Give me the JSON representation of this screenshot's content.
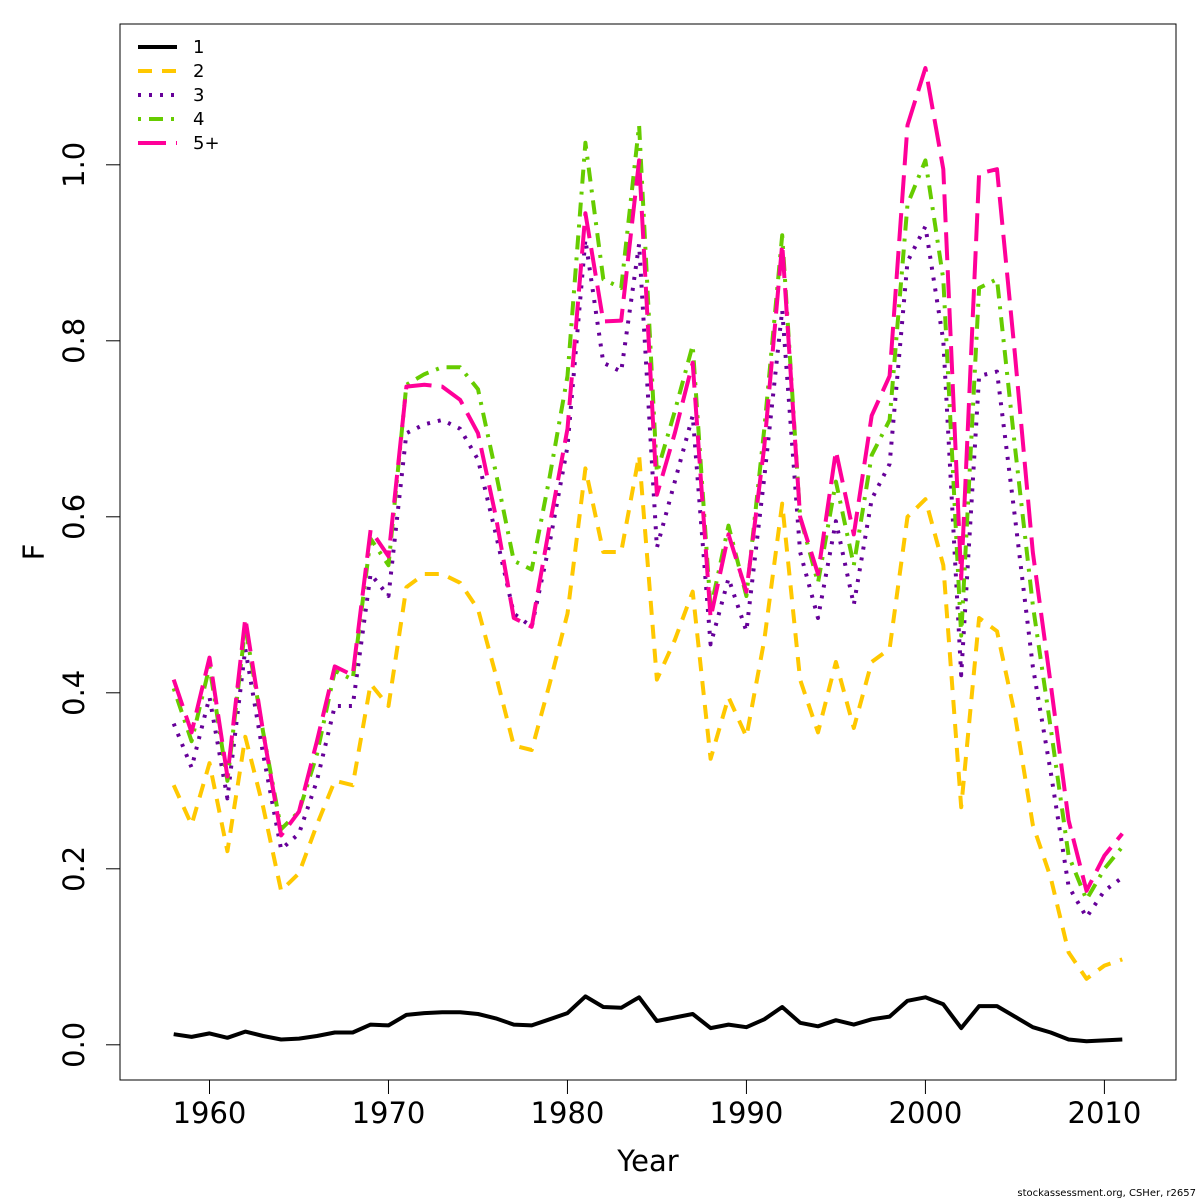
{
  "chart_data": {
    "type": "line",
    "title": "",
    "xlabel": "Year",
    "ylabel": "F",
    "xlim": [
      1955,
      2014
    ],
    "ylim": [
      -0.04,
      1.16
    ],
    "xticks": [
      "1960",
      "1970",
      "1980",
      "1990",
      "2000",
      "2010"
    ],
    "yticks": [
      "0.0",
      "0.2",
      "0.4",
      "0.6",
      "0.8",
      "1.0"
    ],
    "grid": false,
    "legend_position": "top-left",
    "x": [
      1958,
      1959,
      1960,
      1961,
      1962,
      1963,
      1964,
      1965,
      1966,
      1967,
      1968,
      1969,
      1970,
      1971,
      1972,
      1973,
      1974,
      1975,
      1976,
      1977,
      1978,
      1979,
      1980,
      1981,
      1982,
      1983,
      1984,
      1985,
      1986,
      1987,
      1988,
      1989,
      1990,
      1991,
      1992,
      1993,
      1994,
      1995,
      1996,
      1997,
      1998,
      1999,
      2000,
      2001,
      2002,
      2003,
      2004,
      2005,
      2006,
      2007,
      2008,
      2009,
      2010,
      2011
    ],
    "series": [
      {
        "name": "1",
        "color": "#000000",
        "dash": "solid",
        "values": [
          0.012,
          0.009,
          0.013,
          0.008,
          0.015,
          0.01,
          0.006,
          0.007,
          0.01,
          0.014,
          0.014,
          0.023,
          0.022,
          0.034,
          0.036,
          0.037,
          0.037,
          0.035,
          0.03,
          0.023,
          0.022,
          0.029,
          0.036,
          0.055,
          0.043,
          0.042,
          0.054,
          0.027,
          0.031,
          0.035,
          0.019,
          0.023,
          0.02,
          0.029,
          0.043,
          0.025,
          0.021,
          0.028,
          0.023,
          0.029,
          0.032,
          0.05,
          0.054,
          0.046,
          0.019,
          0.044,
          0.044,
          0.032,
          0.02,
          0.014,
          0.006,
          0.004,
          0.005,
          0.006
        ]
      },
      {
        "name": "2",
        "color": "#ffc800",
        "dash": "dashed",
        "values": [
          0.295,
          0.25,
          0.32,
          0.22,
          0.35,
          0.27,
          0.175,
          0.195,
          0.25,
          0.3,
          0.295,
          0.41,
          0.385,
          0.52,
          0.535,
          0.535,
          0.525,
          0.495,
          0.42,
          0.34,
          0.335,
          0.41,
          0.49,
          0.655,
          0.56,
          0.56,
          0.67,
          0.415,
          0.46,
          0.515,
          0.325,
          0.395,
          0.35,
          0.46,
          0.615,
          0.415,
          0.355,
          0.435,
          0.36,
          0.435,
          0.45,
          0.6,
          0.62,
          0.545,
          0.27,
          0.485,
          0.47,
          0.375,
          0.25,
          0.19,
          0.105,
          0.075,
          0.09,
          0.097
        ]
      },
      {
        "name": "3",
        "color": "#660099",
        "dash": "dotted",
        "values": [
          0.365,
          0.315,
          0.395,
          0.28,
          0.45,
          0.33,
          0.222,
          0.24,
          0.3,
          0.385,
          0.385,
          0.535,
          0.51,
          0.695,
          0.705,
          0.71,
          0.7,
          0.665,
          0.58,
          0.49,
          0.475,
          0.57,
          0.68,
          0.915,
          0.775,
          0.765,
          0.91,
          0.565,
          0.64,
          0.715,
          0.455,
          0.53,
          0.47,
          0.645,
          0.835,
          0.56,
          0.485,
          0.595,
          0.5,
          0.62,
          0.66,
          0.89,
          0.93,
          0.8,
          0.42,
          0.76,
          0.765,
          0.6,
          0.43,
          0.31,
          0.18,
          0.145,
          0.175,
          0.19
        ]
      },
      {
        "name": "4",
        "color": "#66cc00",
        "dash": "dotdash",
        "values": [
          0.405,
          0.345,
          0.43,
          0.3,
          0.475,
          0.355,
          0.245,
          0.265,
          0.33,
          0.425,
          0.415,
          0.575,
          0.545,
          0.75,
          0.762,
          0.77,
          0.77,
          0.745,
          0.65,
          0.55,
          0.54,
          0.645,
          0.76,
          1.025,
          0.87,
          0.86,
          1.045,
          0.65,
          0.72,
          0.795,
          0.495,
          0.59,
          0.51,
          0.7,
          0.92,
          0.6,
          0.525,
          0.64,
          0.545,
          0.67,
          0.71,
          0.955,
          1.005,
          0.87,
          0.465,
          0.86,
          0.87,
          0.68,
          0.5,
          0.36,
          0.215,
          0.165,
          0.2,
          0.225
        ]
      },
      {
        "name": "5+",
        "color": "#ff0099",
        "dash": "longdash",
        "values": [
          0.415,
          0.355,
          0.44,
          0.305,
          0.485,
          0.355,
          0.238,
          0.265,
          0.345,
          0.43,
          0.42,
          0.585,
          0.555,
          0.748,
          0.75,
          0.748,
          0.733,
          0.695,
          0.6,
          0.485,
          0.475,
          0.59,
          0.7,
          0.945,
          0.822,
          0.823,
          1.005,
          0.625,
          0.695,
          0.775,
          0.485,
          0.58,
          0.515,
          0.68,
          0.91,
          0.6,
          0.535,
          0.675,
          0.58,
          0.715,
          0.76,
          1.045,
          1.11,
          0.995,
          0.53,
          0.99,
          0.995,
          0.785,
          0.56,
          0.41,
          0.255,
          0.175,
          0.215,
          0.24
        ]
      }
    ]
  },
  "credit": "stockassessment.org, CSHer, r2657"
}
